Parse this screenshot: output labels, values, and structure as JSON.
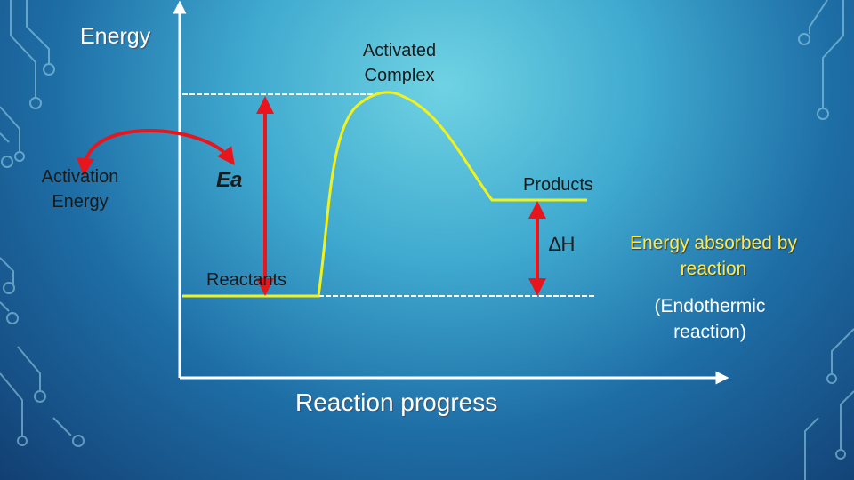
{
  "diagram": {
    "axis_y_label": "Energy",
    "axis_x_label": "Reaction progress",
    "activated_complex": "Activated Complex",
    "activation_energy": "Activation Energy",
    "ea": "Ea",
    "products": "Products",
    "delta_h": "∆H",
    "reactants": "Reactants",
    "absorbed_line1": "Energy absorbed by",
    "absorbed_line2": "reaction",
    "endo_line1": "(Endothermic",
    "endo_line2": "reaction)"
  },
  "colors": {
    "curve": "#f2f21a",
    "arrow": "#e8161c",
    "axis": "#ffffff",
    "dashed": "#ffffff"
  }
}
